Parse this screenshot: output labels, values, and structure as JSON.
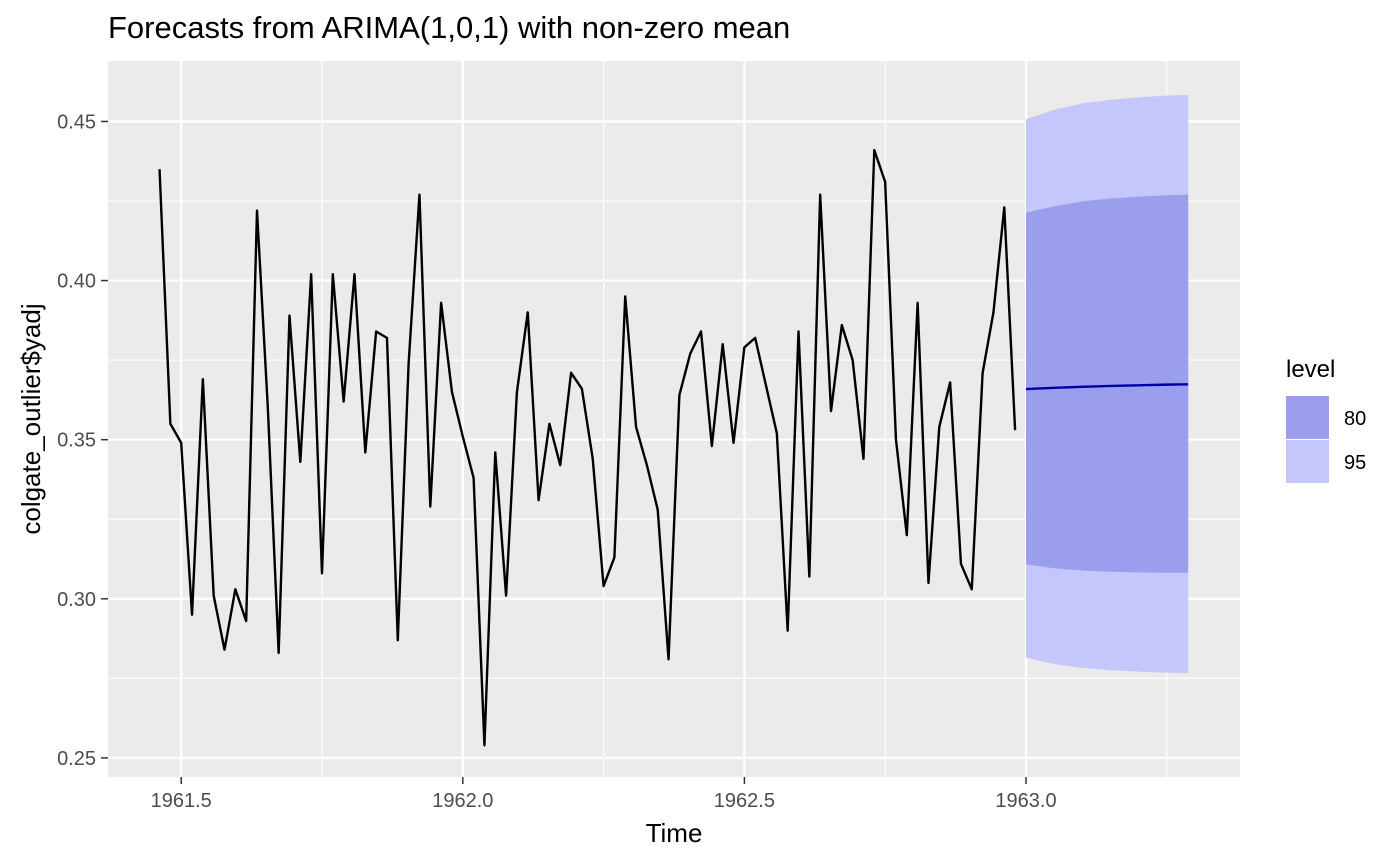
{
  "chart_data": {
    "type": "line",
    "title": "Forecasts from ARIMA(1,0,1) with non-zero mean",
    "xlabel": "Time",
    "ylabel": "colgate_outlier$yadj",
    "xlim": [
      1961.37,
      1963.38
    ],
    "ylim": [
      0.244,
      0.469
    ],
    "x_ticks": [
      1961.5,
      1962.0,
      1962.5,
      1963.0
    ],
    "x_tick_labels": [
      "1961.5",
      "1962.0",
      "1962.5",
      "1963.0"
    ],
    "y_ticks": [
      0.25,
      0.3,
      0.35,
      0.4,
      0.45
    ],
    "y_tick_labels": [
      "0.25",
      "0.30",
      "0.35",
      "0.40",
      "0.45"
    ],
    "grid": true,
    "legend": {
      "title": "level",
      "placement": "right",
      "entries": [
        {
          "label": "80",
          "color": "#9b9eec"
        },
        {
          "label": "95",
          "color": "#c4c6fc"
        }
      ]
    },
    "colors": {
      "panel": "#ebebeb",
      "grid_major": "#ffffff",
      "observed": "#000000",
      "forecast": "#0000aa",
      "band80": "#9b9eec",
      "band95": "#c4c6fc"
    },
    "observed": {
      "start": 1961.4615,
      "step": 0.01923,
      "values": [
        0.435,
        0.355,
        0.349,
        0.295,
        0.369,
        0.301,
        0.284,
        0.303,
        0.293,
        0.422,
        0.36,
        0.283,
        0.389,
        0.343,
        0.402,
        0.308,
        0.402,
        0.362,
        0.402,
        0.346,
        0.384,
        0.382,
        0.287,
        0.374,
        0.427,
        0.329,
        0.393,
        0.365,
        0.351,
        0.338,
        0.254,
        0.346,
        0.301,
        0.365,
        0.39,
        0.331,
        0.355,
        0.342,
        0.371,
        0.366,
        0.344,
        0.304,
        0.313,
        0.395,
        0.354,
        0.342,
        0.328,
        0.281,
        0.364,
        0.377,
        0.384,
        0.348,
        0.38,
        0.349,
        0.379,
        0.382,
        0.367,
        0.352,
        0.29,
        0.384,
        0.307,
        0.427,
        0.359,
        0.386,
        0.375,
        0.344,
        0.441,
        0.431,
        0.35,
        0.32,
        0.393,
        0.305,
        0.354,
        0.368,
        0.311,
        0.303,
        0.371,
        0.39,
        0.423,
        0.353
      ]
    },
    "forecast": {
      "x": [
        1963.0,
        1963.05,
        1963.1,
        1963.15,
        1963.2,
        1963.25,
        1963.288
      ],
      "mean": [
        0.3659,
        0.3663,
        0.3666,
        0.3669,
        0.3671,
        0.3673,
        0.3674
      ],
      "lo80": [
        0.3108,
        0.3096,
        0.3089,
        0.3085,
        0.3083,
        0.3082,
        0.3082
      ],
      "hi80": [
        0.4214,
        0.4233,
        0.4249,
        0.4258,
        0.4264,
        0.4268,
        0.427
      ],
      "lo95": [
        0.2815,
        0.2795,
        0.2783,
        0.2776,
        0.2771,
        0.2768,
        0.2767
      ],
      "hi95": [
        0.4507,
        0.4537,
        0.4557,
        0.4568,
        0.4576,
        0.4581,
        0.4583
      ]
    }
  }
}
